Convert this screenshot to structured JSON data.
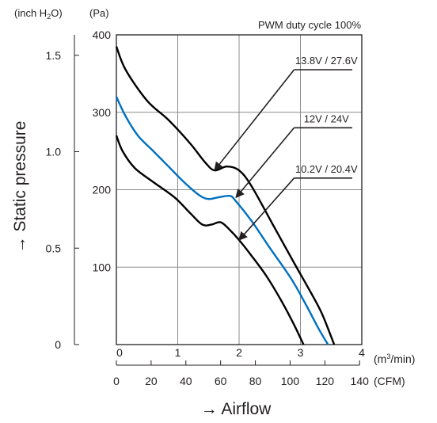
{
  "chart_data": {
    "type": "line",
    "title": "",
    "annotation": "PWM duty cycle 100%",
    "xlabel": "Airflow",
    "ylabel": "Static pressure",
    "x_unit_primary": "m3/min",
    "x_unit_secondary": "CFM",
    "y_unit_primary": "Pa",
    "y_unit_secondary": "inch H2O",
    "xlim": [
      0,
      4
    ],
    "ylim": [
      0,
      400
    ],
    "x_ticks": [
      "0",
      "1",
      "2",
      "3",
      "4"
    ],
    "x_ticks_secondary": [
      "0",
      "20",
      "40",
      "60",
      "80",
      "100",
      "120",
      "140"
    ],
    "y_ticks": [
      "100",
      "200",
      "300",
      "400"
    ],
    "y_ticks_secondary": [
      "0",
      "0.5",
      "1.0",
      "1.5"
    ],
    "grid": true,
    "series": [
      {
        "name": "13.8V / 27.6V",
        "color": "#000000",
        "points": [
          [
            0,
            385
          ],
          [
            0.15,
            355
          ],
          [
            0.5,
            315
          ],
          [
            0.85,
            290
          ],
          [
            1.2,
            260
          ],
          [
            1.45,
            235
          ],
          [
            1.6,
            225
          ],
          [
            1.8,
            230
          ],
          [
            2.0,
            225
          ],
          [
            2.2,
            205
          ],
          [
            2.55,
            155
          ],
          [
            2.9,
            105
          ],
          [
            3.15,
            70
          ],
          [
            3.35,
            40
          ],
          [
            3.55,
            0
          ]
        ]
      },
      {
        "name": "12V / 24V",
        "color": "#0070c0",
        "points": [
          [
            0,
            320
          ],
          [
            0.15,
            295
          ],
          [
            0.35,
            270
          ],
          [
            0.6,
            250
          ],
          [
            0.85,
            230
          ],
          [
            1.1,
            210
          ],
          [
            1.35,
            193
          ],
          [
            1.5,
            188
          ],
          [
            1.65,
            190
          ],
          [
            1.85,
            192
          ],
          [
            1.95,
            185
          ],
          [
            2.2,
            160
          ],
          [
            2.5,
            125
          ],
          [
            2.85,
            85
          ],
          [
            3.1,
            50
          ],
          [
            3.3,
            20
          ],
          [
            3.45,
            0
          ]
        ]
      },
      {
        "name": "10.2V / 20.4V",
        "color": "#000000",
        "points": [
          [
            0,
            270
          ],
          [
            0.1,
            250
          ],
          [
            0.3,
            228
          ],
          [
            0.6,
            210
          ],
          [
            0.95,
            190
          ],
          [
            1.2,
            170
          ],
          [
            1.4,
            155
          ],
          [
            1.55,
            155
          ],
          [
            1.7,
            158
          ],
          [
            1.85,
            148
          ],
          [
            2.0,
            135
          ],
          [
            2.2,
            115
          ],
          [
            2.45,
            88
          ],
          [
            2.7,
            55
          ],
          [
            2.9,
            25
          ],
          [
            3.05,
            0
          ]
        ]
      }
    ],
    "callouts": [
      {
        "label": "13.8V / 27.6V",
        "target": [
          1.6,
          225
        ],
        "text_at": [
          3.0,
          355
        ]
      },
      {
        "label": "12V / 24V",
        "target": [
          1.95,
          190
        ],
        "text_at": [
          3.0,
          280
        ]
      },
      {
        "label": "10.2V / 20.4V",
        "target": [
          2.0,
          135
        ],
        "text_at": [
          3.0,
          215
        ]
      }
    ]
  }
}
